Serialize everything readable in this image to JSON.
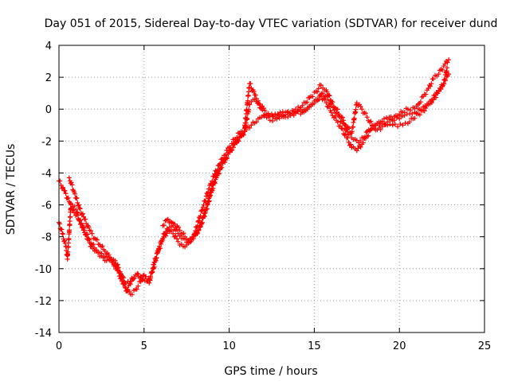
{
  "chart_data": {
    "type": "scatter",
    "title": "Day 051 of 2015, Sidereal Day-to-day VTEC variation (SDTVAR) for receiver dund",
    "xlabel": "GPS time / hours",
    "ylabel": "SDTVAR / TECUs",
    "xlim": [
      0,
      25
    ],
    "ylim": [
      -14,
      4
    ],
    "x_ticks": [
      "0",
      "5",
      "10",
      "15",
      "20",
      "25"
    ],
    "y_ticks": [
      "4",
      "2",
      "0",
      "-2",
      "-4",
      "-6",
      "-8",
      "-10",
      "-12",
      "-14"
    ],
    "grid": true,
    "legend": "none",
    "marker": "plus",
    "color": "#ff0000",
    "series": [
      {
        "x": [
          0,
          0.3,
          0.6,
          0.9,
          1.2,
          1.5,
          1.8,
          2.1,
          2.4,
          2.7,
          3.0,
          3.3,
          3.6,
          3.9,
          4.2,
          4.5,
          4.8,
          5.0,
          5.3,
          5.6,
          5.9,
          6.2,
          6.5,
          6.8,
          7.1,
          7.4,
          7.7,
          8.0,
          8.3,
          8.6,
          8.9,
          9.2,
          9.5,
          9.8,
          10.1,
          10.4,
          10.7,
          11.0,
          11.3,
          11.6,
          11.9,
          12.2,
          12.5,
          12.8,
          13.1,
          13.4,
          13.7,
          14.0,
          14.3,
          14.6,
          14.9,
          15.2,
          15.5,
          15.8,
          16.1,
          16.4,
          16.7,
          17.0,
          17.3,
          17.6,
          17.9,
          18.2,
          18.5,
          18.8,
          19.1,
          19.4,
          19.7,
          20.0,
          20.3,
          20.6,
          20.9,
          21.2,
          21.5,
          21.8,
          22.1,
          22.4,
          22.7,
          22.9
        ],
        "y": [
          -4.5,
          -5.1,
          -5.8,
          -6.5,
          -7.0,
          -7.6,
          -8.2,
          -8.7,
          -9.0,
          -9.3,
          -9.4,
          -9.8,
          -10.3,
          -11.2,
          -11.6,
          -11.3,
          -10.8,
          -10.4,
          -10.9,
          -9.6,
          -8.6,
          -7.8,
          -7.4,
          -7.2,
          -7.6,
          -8.0,
          -8.2,
          -7.9,
          -7.4,
          -6.5,
          -5.4,
          -4.4,
          -3.7,
          -3.1,
          -2.6,
          -2.1,
          -1.7,
          -1.3,
          -1.0,
          -0.8,
          -0.5,
          -0.4,
          -0.3,
          -0.5,
          -0.4,
          -0.2,
          -0.3,
          -0.1,
          -0.2,
          0.0,
          0.3,
          0.6,
          1.0,
          0.6,
          0.1,
          -0.4,
          -0.9,
          -1.6,
          -1.9,
          -2.1,
          -1.8,
          -1.3,
          -1.0,
          -0.8,
          -0.6,
          -0.5,
          -0.7,
          -0.6,
          -0.4,
          -0.3,
          -0.2,
          0.0,
          0.2,
          0.5,
          0.9,
          1.3,
          1.8,
          2.2
        ]
      },
      {
        "x": [
          0,
          0.2,
          0.4,
          0.5,
          0.7,
          1.0,
          1.3,
          1.6,
          1.9,
          2.2,
          2.5,
          2.8,
          3.1,
          3.4,
          3.7,
          4.0,
          4.3,
          4.6,
          4.9,
          5.2,
          5.5,
          5.8,
          6.1,
          6.4,
          6.7,
          7.0,
          7.3,
          7.6,
          7.9,
          8.2,
          8.5,
          8.8,
          9.1,
          9.4,
          9.7,
          10.0,
          10.3,
          10.6,
          10.9,
          11.2,
          11.5,
          11.8,
          12.1,
          12.4,
          12.7,
          13.0,
          13.3,
          13.6,
          13.9,
          14.2,
          14.5,
          14.8,
          15.1,
          15.4,
          15.7,
          16.0,
          16.3,
          16.6,
          16.9,
          17.2,
          17.5,
          17.8,
          18.1,
          18.4,
          18.7,
          19.0,
          19.3,
          19.6,
          19.9,
          20.2,
          20.5,
          20.8,
          21.1,
          21.4,
          21.7,
          22.0,
          22.3,
          22.6,
          22.8
        ],
        "y": [
          -7.1,
          -7.8,
          -8.6,
          -9.4,
          -6.0,
          -6.3,
          -7.2,
          -7.9,
          -8.6,
          -8.9,
          -9.2,
          -9.5,
          -9.6,
          -10.0,
          -10.8,
          -11.4,
          -10.6,
          -10.3,
          -10.7,
          -10.8,
          -10.2,
          -9.0,
          -8.2,
          -7.6,
          -7.8,
          -8.3,
          -8.6,
          -8.4,
          -8.0,
          -7.0,
          -6.0,
          -5.0,
          -4.2,
          -3.5,
          -2.9,
          -2.4,
          -1.9,
          -1.5,
          -1.2,
          1.6,
          0.9,
          0.1,
          -0.4,
          -0.7,
          -0.6,
          -0.3,
          -0.5,
          -0.4,
          -0.2,
          -0.3,
          -0.1,
          0.2,
          0.5,
          0.8,
          0.4,
          -0.2,
          -0.7,
          -1.2,
          -1.8,
          -2.4,
          -2.6,
          -2.2,
          -1.7,
          -1.2,
          -0.9,
          -0.9,
          -1.0,
          -1.0,
          -1.1,
          -1.0,
          -0.9,
          -0.6,
          -0.3,
          -0.1,
          0.3,
          0.6,
          1.1,
          1.6,
          2.6
        ]
      },
      {
        "x": [
          0.6,
          0.9,
          1.2,
          1.5,
          1.8,
          2.1,
          2.4,
          2.7,
          3.0,
          3.3,
          3.6,
          3.9,
          4.2,
          4.5,
          4.8,
          5.1,
          6.1,
          6.4,
          6.7,
          7.0,
          7.3,
          7.6,
          7.9,
          8.2,
          8.5,
          8.8,
          9.1,
          9.4,
          9.7,
          10.0,
          10.3,
          10.6,
          10.9,
          11.2,
          11.5,
          11.8,
          12.1,
          12.4,
          12.7,
          13.0,
          13.3,
          13.6,
          13.9,
          14.2,
          14.5,
          14.8,
          15.1,
          15.4,
          15.7,
          16.0,
          16.3,
          16.6,
          16.9,
          17.2,
          17.5,
          17.8,
          18.1,
          18.4,
          18.7,
          19.0,
          19.3,
          19.6,
          19.9,
          20.2,
          20.5,
          20.8,
          21.1,
          21.4,
          21.7,
          22.0,
          22.3,
          22.6,
          22.9
        ],
        "y": [
          -4.3,
          -5.2,
          -6.2,
          -6.9,
          -7.6,
          -8.1,
          -8.5,
          -8.9,
          -9.3,
          -9.5,
          -10.2,
          -10.9,
          -10.8,
          -10.4,
          -10.5,
          -10.5,
          -7.3,
          -6.9,
          -7.3,
          -7.8,
          -8.1,
          -8.3,
          -8.0,
          -7.6,
          -6.7,
          -5.6,
          -4.6,
          -3.8,
          -3.2,
          -2.7,
          -2.2,
          -1.8,
          -1.4,
          0.3,
          0.6,
          0.3,
          -0.1,
          -0.4,
          -0.3,
          -0.2,
          -0.2,
          -0.3,
          0.0,
          0.1,
          0.4,
          0.8,
          1.1,
          1.5,
          1.2,
          0.5,
          0.0,
          -0.5,
          -1.1,
          -1.5,
          0.4,
          0.0,
          -0.5,
          -1.0,
          -1.3,
          -1.1,
          -0.8,
          -0.6,
          -0.4,
          -0.2,
          0.0,
          0.1,
          0.3,
          0.8,
          1.3,
          1.9,
          2.2,
          2.7,
          3.1
        ]
      }
    ]
  }
}
